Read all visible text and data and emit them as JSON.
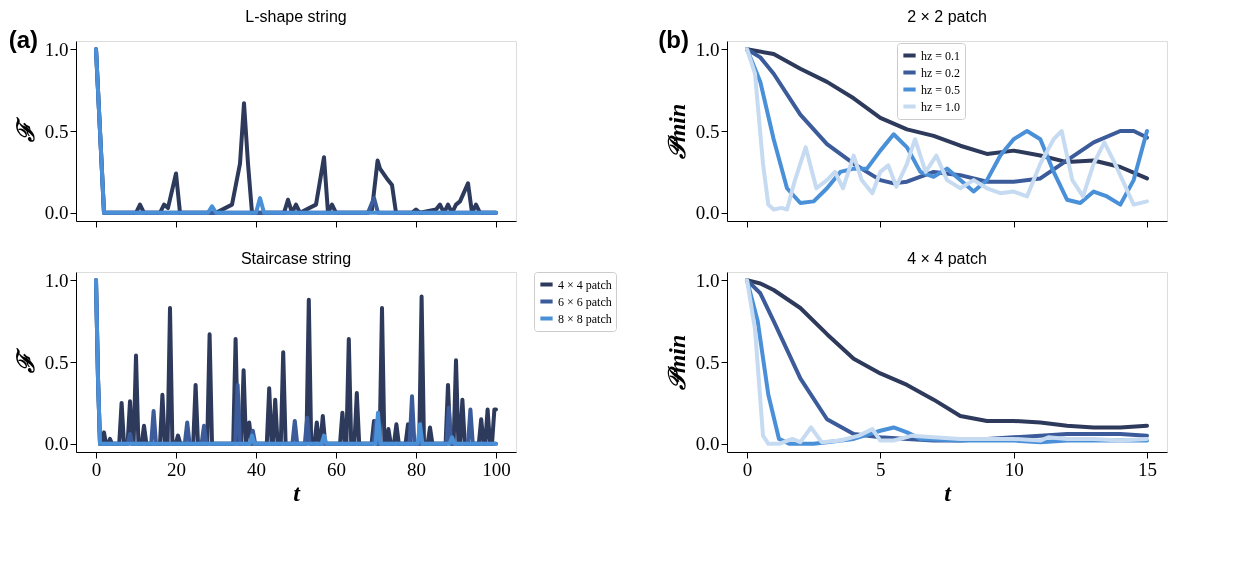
{
  "chart_data": [
    {
      "type": "line",
      "title": "L-shape string",
      "ylabel": "ℱ",
      "annotations": [
        "(a)"
      ],
      "xlim": [
        -5,
        105
      ],
      "ylim": [
        -0.05,
        1.05
      ],
      "xticks": [
        0,
        20,
        40,
        60,
        80,
        100
      ],
      "yticks": [
        {
          "value": 0,
          "label": "0.0"
        },
        {
          "value": 0.5,
          "label": "0.5"
        },
        {
          "value": 1,
          "label": "1.0"
        }
      ],
      "tick_labels": "y",
      "grid": false,
      "legend": false,
      "series": [
        {
          "color": "#2e3a5c",
          "x": [
            0,
            1,
            2,
            10,
            11,
            12,
            16,
            17,
            18,
            20,
            21,
            30,
            34,
            36,
            37,
            38,
            39,
            47,
            48,
            49,
            50,
            51,
            55,
            57,
            58,
            59,
            60,
            68,
            69,
            70.4,
            71,
            73,
            74,
            75,
            79,
            80,
            81,
            85,
            86,
            87,
            88,
            89,
            90,
            91,
            93,
            94,
            95,
            96,
            100
          ],
          "values": [
            1.0,
            0.5,
            0.0,
            0.0,
            0.05,
            0.0,
            0.0,
            0.05,
            0.03,
            0.24,
            0.0,
            0.0,
            0.05,
            0.3,
            0.67,
            0.3,
            0.0,
            0.0,
            0.08,
            0.0,
            0.05,
            0.0,
            0.05,
            0.34,
            0.0,
            0.05,
            0.0,
            0.0,
            0.02,
            0.32,
            0.27,
            0.2,
            0.17,
            0.0,
            0.0,
            0.02,
            0.0,
            0.02,
            0.05,
            0.0,
            0.05,
            0.0,
            0.05,
            0.07,
            0.18,
            0.0,
            0.05,
            0.0,
            0.0
          ]
        },
        {
          "color": "#3b5b9a",
          "x": [
            0,
            1,
            2,
            68,
            69.5,
            70.5,
            100
          ],
          "values": [
            1.0,
            0.5,
            0.0,
            0.0,
            0.09,
            0.0,
            0.0
          ]
        },
        {
          "color": "#4a90d9",
          "x": [
            0,
            1,
            2,
            28,
            29,
            30,
            40,
            41,
            42,
            100
          ],
          "values": [
            1.0,
            0.5,
            0.0,
            0.0,
            0.04,
            0.0,
            0.0,
            0.09,
            0.0,
            0.0
          ]
        }
      ]
    },
    {
      "type": "line",
      "title": "Staircase string",
      "xlabel": "t",
      "ylabel": "ℱ",
      "xlim": [
        -5,
        105
      ],
      "ylim": [
        -0.05,
        1.05
      ],
      "xticks": [
        0,
        20,
        40,
        60,
        80,
        100
      ],
      "yticks": [
        {
          "value": 0,
          "label": "0.0"
        },
        {
          "value": 0.5,
          "label": "0.5"
        },
        {
          "value": 1,
          "label": "1.0"
        }
      ],
      "grid": false,
      "legend": "right",
      "series": [
        {
          "name": "4 × 4 patch",
          "color": "#2e3a5c",
          "x": [
            0,
            0.5,
            1,
            1.5,
            2,
            2.5,
            3,
            3.5,
            4,
            5.8,
            6.4,
            7,
            7.9,
            8.5,
            9.1,
            9.4,
            10,
            10.6,
            11.4,
            12,
            12.6,
            16,
            16.6,
            17.2,
            17.9,
            18.5,
            19.1,
            19.9,
            20.5,
            21.1,
            24.3,
            24.9,
            25.5,
            27.8,
            28.4,
            29,
            34.3,
            34.9,
            35.5,
            36.3,
            36.9,
            37.5,
            38.3,
            38.9,
            42.7,
            43.3,
            43.9,
            44.2,
            44.8,
            45.4,
            46.2,
            46.8,
            47.4,
            52.6,
            53.2,
            53.8,
            54.6,
            55.2,
            55.8,
            56.1,
            56.7,
            57.3,
            61,
            61.6,
            62.2,
            62.6,
            63.2,
            63.8,
            64.6,
            65.2,
            65.8,
            68.9,
            69.5,
            70.1,
            70.9,
            71.5,
            72.1,
            72.5,
            73.1,
            73.7,
            74.5,
            75.1,
            75.7,
            77.4,
            78,
            78.6,
            80.8,
            81.4,
            82,
            82.9,
            83.5,
            84.1,
            87.4,
            88,
            88.6,
            89.4,
            90,
            90.6,
            91,
            91.6,
            92.2,
            95.7,
            96.3,
            96.9,
            97.3,
            97.9,
            98.5,
            99,
            99.6,
            100
          ],
          "values": [
            1.0,
            0.4,
            0.0,
            0.0,
            0.07,
            0.0,
            0.0,
            0.03,
            0.0,
            0.0,
            0.25,
            0.0,
            0.0,
            0.26,
            0.0,
            0.0,
            0.54,
            0.0,
            0.0,
            0.11,
            0.0,
            0.0,
            0.3,
            0.0,
            0.0,
            0.83,
            0.0,
            0.0,
            0.05,
            0.0,
            0.0,
            0.36,
            0.0,
            0.0,
            0.67,
            0.0,
            0.0,
            0.64,
            0.0,
            0.0,
            0.45,
            0.0,
            0.13,
            0.0,
            0.0,
            0.34,
            0.0,
            0.0,
            0.27,
            0.0,
            0.0,
            0.56,
            0.0,
            0.0,
            0.88,
            0.0,
            0.0,
            0.13,
            0.0,
            0.0,
            0.17,
            0.0,
            0.0,
            0.19,
            0.0,
            0.0,
            0.64,
            0.0,
            0.0,
            0.31,
            0.0,
            0.0,
            0.14,
            0.0,
            0.0,
            0.83,
            0.0,
            0.0,
            0.09,
            0.0,
            0.0,
            0.12,
            0.0,
            0.0,
            0.12,
            0.0,
            0.0,
            0.9,
            0.0,
            0.0,
            0.1,
            0.0,
            0.0,
            0.36,
            0.0,
            0.0,
            0.51,
            0.0,
            0.0,
            0.27,
            0.0,
            0.0,
            0.15,
            0.0,
            0.0,
            0.21,
            0.0,
            0.0,
            0.21,
            0.21
          ]
        },
        {
          "name": "6 × 6 patch",
          "color": "#3b5b9a",
          "x": [
            0,
            0.5,
            1,
            7.9,
            8.5,
            9.1,
            13.8,
            14.4,
            15,
            22.2,
            22.8,
            23.4,
            26.4,
            27,
            27.6,
            34.8,
            35.4,
            36,
            38.6,
            39.2,
            39.8,
            49.1,
            49.7,
            50.3,
            52.2,
            52.8,
            53.4,
            69.4,
            70,
            70.6,
            78.4,
            79,
            79.6,
            87.6,
            88.2,
            88.8,
            93,
            93.6,
            94.2,
            100
          ],
          "values": [
            1.0,
            0.4,
            0.0,
            0.0,
            0.06,
            0.0,
            0.0,
            0.2,
            0.0,
            0.0,
            0.13,
            0.0,
            0.0,
            0.11,
            0.0,
            0.0,
            0.36,
            0.0,
            0.0,
            0.08,
            0.0,
            0.0,
            0.14,
            0.0,
            0.0,
            0.16,
            0.0,
            0.0,
            0.14,
            0.0,
            0.0,
            0.29,
            0.0,
            0.0,
            0.22,
            0.0,
            0.0,
            0.21,
            0.0,
            0.0
          ]
        },
        {
          "name": "8 × 8 patch",
          "color": "#4a90d9",
          "x": [
            0,
            0.5,
            1,
            38.4,
            39,
            39.6,
            56.4,
            57,
            57.6,
            69.9,
            70.5,
            71.1,
            80.4,
            81,
            81.6,
            88.4,
            89,
            89.6,
            100
          ],
          "values": [
            1.0,
            0.4,
            0.0,
            0.0,
            0.05,
            0.0,
            0.0,
            0.05,
            0.0,
            0.0,
            0.19,
            0.0,
            0.0,
            0.12,
            0.0,
            0.0,
            0.04,
            0.0,
            0.0
          ]
        }
      ]
    },
    {
      "type": "line",
      "title": "2 × 2 patch",
      "ylabel": "𝒫min",
      "annotations": [
        "(b)"
      ],
      "xlim": [
        -0.75,
        15.75
      ],
      "ylim": [
        -0.05,
        1.05
      ],
      "xticks": [
        0,
        5,
        10,
        15
      ],
      "yticks": [
        {
          "value": 0,
          "label": "0.0"
        },
        {
          "value": 0.5,
          "label": "0.5"
        },
        {
          "value": 1,
          "label": "1.0"
        }
      ],
      "tick_labels": "y",
      "grid": false,
      "legend": "top",
      "series": [
        {
          "name": "hz = 0.1",
          "color": "#2e3a5c",
          "x": [
            0,
            1,
            2,
            3,
            4,
            5,
            6,
            7,
            8,
            9,
            10,
            11,
            12,
            13,
            14,
            15
          ],
          "values": [
            1.0,
            0.97,
            0.88,
            0.8,
            0.7,
            0.58,
            0.51,
            0.47,
            0.41,
            0.36,
            0.38,
            0.35,
            0.31,
            0.32,
            0.28,
            0.21
          ]
        },
        {
          "name": "hz = 0.2",
          "color": "#3b5b9a",
          "x": [
            0,
            0.5,
            1,
            2,
            3,
            4,
            5,
            5.5,
            6,
            7,
            8,
            9,
            10,
            11,
            12,
            13,
            14,
            14.5,
            15
          ],
          "values": [
            1.0,
            0.95,
            0.85,
            0.6,
            0.42,
            0.3,
            0.2,
            0.18,
            0.19,
            0.25,
            0.23,
            0.19,
            0.19,
            0.21,
            0.32,
            0.43,
            0.5,
            0.5,
            0.46
          ]
        },
        {
          "name": "hz = 0.5",
          "color": "#4a90d9",
          "x": [
            0,
            0.5,
            1,
            1.5,
            2,
            2.5,
            3,
            3.5,
            4,
            4.5,
            5,
            5.5,
            6,
            6.5,
            7,
            7.5,
            8,
            8.5,
            9,
            9.5,
            10,
            10.5,
            11,
            11.5,
            12,
            12.5,
            13,
            13.5,
            14,
            14.5,
            15
          ],
          "values": [
            1.0,
            0.8,
            0.45,
            0.15,
            0.06,
            0.07,
            0.15,
            0.25,
            0.27,
            0.27,
            0.38,
            0.48,
            0.4,
            0.25,
            0.22,
            0.27,
            0.2,
            0.13,
            0.2,
            0.35,
            0.45,
            0.5,
            0.45,
            0.25,
            0.08,
            0.06,
            0.13,
            0.1,
            0.05,
            0.2,
            0.5
          ]
        },
        {
          "name": "hz = 1.0",
          "color": "#c6dbf1",
          "x": [
            0,
            0.3,
            0.6,
            0.8,
            1,
            1.3,
            1.5,
            1.8,
            2.2,
            2.6,
            3,
            3.3,
            3.6,
            4,
            4.3,
            4.7,
            5,
            5.3,
            5.6,
            6,
            6.3,
            6.7,
            7.1,
            7.5,
            8,
            8.5,
            9,
            9.5,
            10,
            10.5,
            11,
            11.5,
            11.8,
            12.2,
            12.6,
            13,
            13.4,
            13.8,
            14.5,
            15
          ],
          "values": [
            1.0,
            0.85,
            0.3,
            0.05,
            0.02,
            0.03,
            0.02,
            0.2,
            0.4,
            0.15,
            0.2,
            0.25,
            0.15,
            0.35,
            0.2,
            0.12,
            0.25,
            0.29,
            0.16,
            0.3,
            0.45,
            0.25,
            0.35,
            0.2,
            0.15,
            0.2,
            0.15,
            0.12,
            0.13,
            0.1,
            0.3,
            0.45,
            0.5,
            0.2,
            0.1,
            0.3,
            0.43,
            0.3,
            0.05,
            0.07
          ]
        }
      ]
    },
    {
      "type": "line",
      "title": "4 × 4 patch",
      "xlabel": "t",
      "ylabel": "𝒫min",
      "xlim": [
        -0.75,
        15.75
      ],
      "ylim": [
        -0.05,
        1.05
      ],
      "xticks": [
        0,
        5,
        10,
        15
      ],
      "yticks": [
        {
          "value": 0,
          "label": "0.0"
        },
        {
          "value": 0.5,
          "label": "0.5"
        },
        {
          "value": 1,
          "label": "1.0"
        }
      ],
      "grid": false,
      "legend": false,
      "series": [
        {
          "color": "#2e3a5c",
          "x": [
            0,
            0.5,
            1,
            2,
            3,
            4,
            5,
            6,
            7,
            8,
            9,
            10,
            11,
            12,
            13,
            14,
            15
          ],
          "values": [
            1.0,
            0.98,
            0.94,
            0.83,
            0.67,
            0.52,
            0.43,
            0.36,
            0.27,
            0.17,
            0.14,
            0.14,
            0.13,
            0.11,
            0.1,
            0.1,
            0.11
          ]
        },
        {
          "color": "#3b5b9a",
          "x": [
            0,
            0.5,
            1,
            2,
            3,
            4,
            5,
            6,
            7,
            8,
            9,
            10,
            11,
            12,
            13,
            14,
            15
          ],
          "values": [
            1.0,
            0.92,
            0.75,
            0.4,
            0.15,
            0.06,
            0.04,
            0.03,
            0.02,
            0.02,
            0.03,
            0.04,
            0.05,
            0.06,
            0.06,
            0.06,
            0.05
          ]
        },
        {
          "color": "#4a90d9",
          "x": [
            0,
            0.4,
            0.8,
            1.2,
            1.6,
            2.5,
            3,
            4,
            5,
            5.5,
            6,
            6.5,
            8,
            10,
            11,
            12,
            15
          ],
          "values": [
            1.0,
            0.75,
            0.3,
            0.03,
            0.0,
            0.0,
            0.01,
            0.03,
            0.08,
            0.1,
            0.07,
            0.03,
            0.02,
            0.02,
            0.01,
            0.02,
            0.02
          ]
        },
        {
          "color": "#c6dbf1",
          "x": [
            0,
            0.3,
            0.6,
            0.8,
            1.2,
            1.7,
            2,
            2.4,
            2.8,
            3.5,
            4.2,
            4.7,
            5,
            5.5,
            6.2,
            7,
            8,
            9,
            10,
            11,
            11.3,
            12,
            13,
            14,
            15
          ],
          "values": [
            1.0,
            0.7,
            0.05,
            0.0,
            0.0,
            0.03,
            0.01,
            0.1,
            0.01,
            0.02,
            0.05,
            0.09,
            0.02,
            0.02,
            0.05,
            0.04,
            0.03,
            0.03,
            0.03,
            0.02,
            0.04,
            0.03,
            0.03,
            0.02,
            0.03
          ]
        }
      ]
    }
  ]
}
